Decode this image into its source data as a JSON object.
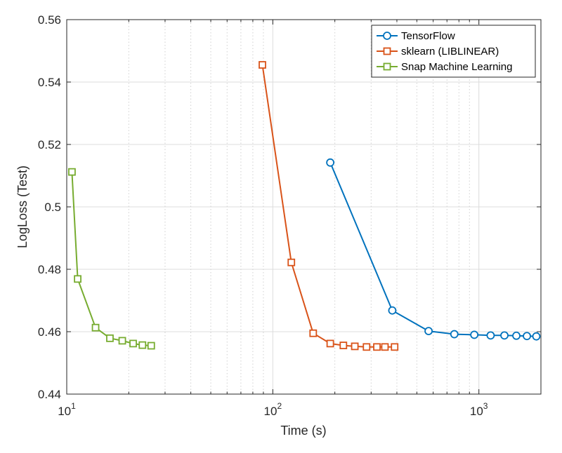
{
  "chart_data": {
    "type": "line",
    "title": "",
    "xlabel": "Time (s)",
    "ylabel": "LogLoss (Test)",
    "xscale": "log",
    "xlim": [
      10,
      2000
    ],
    "ylim": [
      0.44,
      0.56
    ],
    "yticks": [
      0.44,
      0.46,
      0.48,
      0.5,
      0.52,
      0.54,
      0.56
    ],
    "ytick_labels": [
      "0.44",
      "0.46",
      "0.48",
      "0.5",
      "0.52",
      "0.54",
      "0.56"
    ],
    "xticks": [
      10,
      100,
      1000
    ],
    "xtick_labels": [
      {
        "base": "10",
        "exp": "1"
      },
      {
        "base": "10",
        "exp": "2"
      },
      {
        "base": "10",
        "exp": "3"
      }
    ],
    "grid": true,
    "legend_position": "top-right",
    "series": [
      {
        "name": "TensorFlow",
        "color": "#0072bd",
        "marker": "circle",
        "x": [
          190,
          380,
          570,
          760,
          950,
          1140,
          1330,
          1520,
          1710,
          1900
        ],
        "y": [
          0.5142,
          0.4668,
          0.4602,
          0.4592,
          0.459,
          0.4588,
          0.4588,
          0.4587,
          0.4586,
          0.4585
        ]
      },
      {
        "name": "sklearn (LIBLINEAR)",
        "color": "#d95319",
        "marker": "square",
        "x": [
          89,
          123,
          157,
          190,
          220,
          250,
          285,
          320,
          350,
          390
        ],
        "y": [
          0.5455,
          0.4822,
          0.4595,
          0.4562,
          0.4556,
          0.4553,
          0.4551,
          0.4551,
          0.4551,
          0.4551
        ]
      },
      {
        "name": "Snap Machine Learning",
        "color": "#77ac30",
        "marker": "square",
        "x": [
          10.6,
          11.3,
          13.8,
          16.2,
          18.6,
          21.0,
          23.3,
          25.7
        ],
        "y": [
          0.5112,
          0.4769,
          0.4613,
          0.4579,
          0.4571,
          0.4562,
          0.4557,
          0.4555
        ]
      }
    ]
  }
}
